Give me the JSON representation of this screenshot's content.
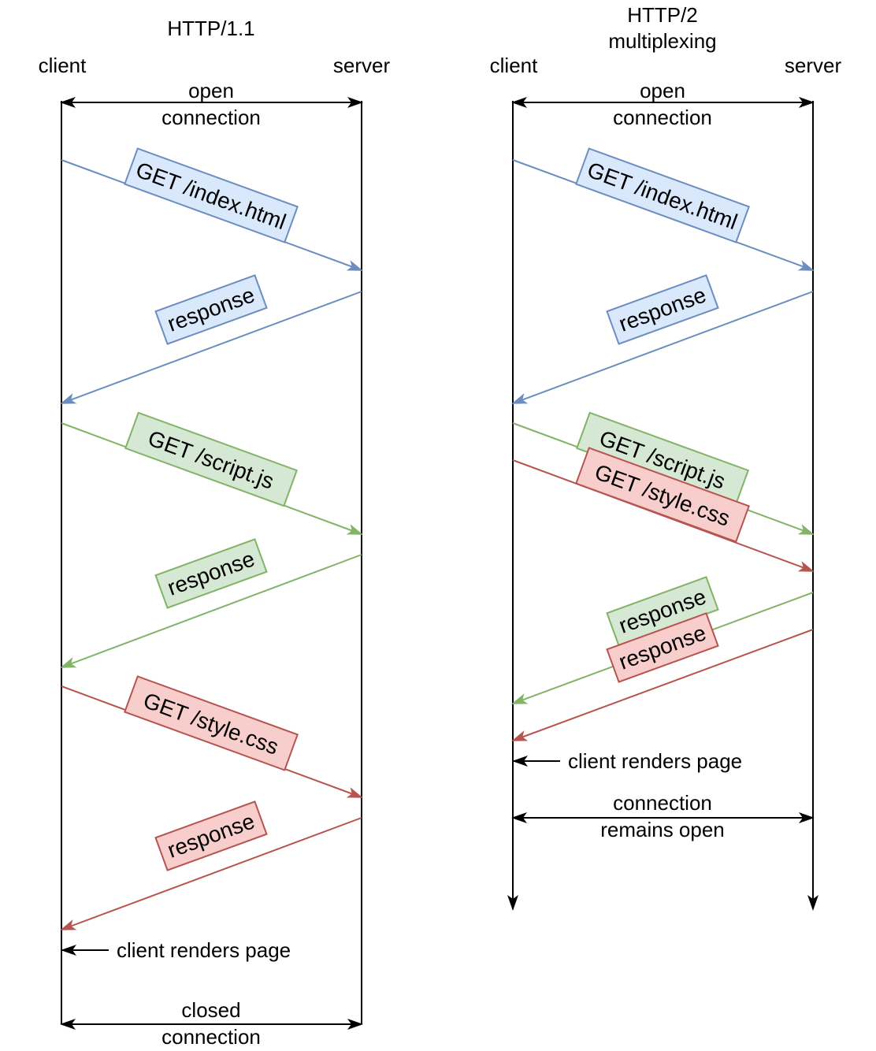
{
  "colors": {
    "blue_stroke": "#6C8EBF",
    "blue_fill": "#DAE8FC",
    "green_stroke": "#82B366",
    "green_fill": "#D5E8D4",
    "red_stroke": "#B85450",
    "red_fill": "#F8CECC",
    "line": "#000000"
  },
  "http11": {
    "title": "HTTP/1.1",
    "client_label": "client",
    "server_label": "server",
    "open_line1": "open",
    "open_line2": "connection",
    "get_index": "GET /index.html",
    "response1": "response",
    "get_script": "GET /script.js",
    "response2": "response",
    "get_style": "GET /style.css",
    "response3": "response",
    "renders": "client renders page",
    "closed_line1": "closed",
    "closed_line2": "connection"
  },
  "http2": {
    "title_line1": "HTTP/2",
    "title_line2": "multiplexing",
    "client_label": "client",
    "server_label": "server",
    "open_line1": "open",
    "open_line2": "connection",
    "get_index": "GET /index.html",
    "response1": "response",
    "get_script": "GET /script.js",
    "get_style": "GET /style.css",
    "response_script": "response",
    "response_style": "response",
    "renders": "client renders page",
    "remains_line1": "connection",
    "remains_line2": "remains open"
  }
}
